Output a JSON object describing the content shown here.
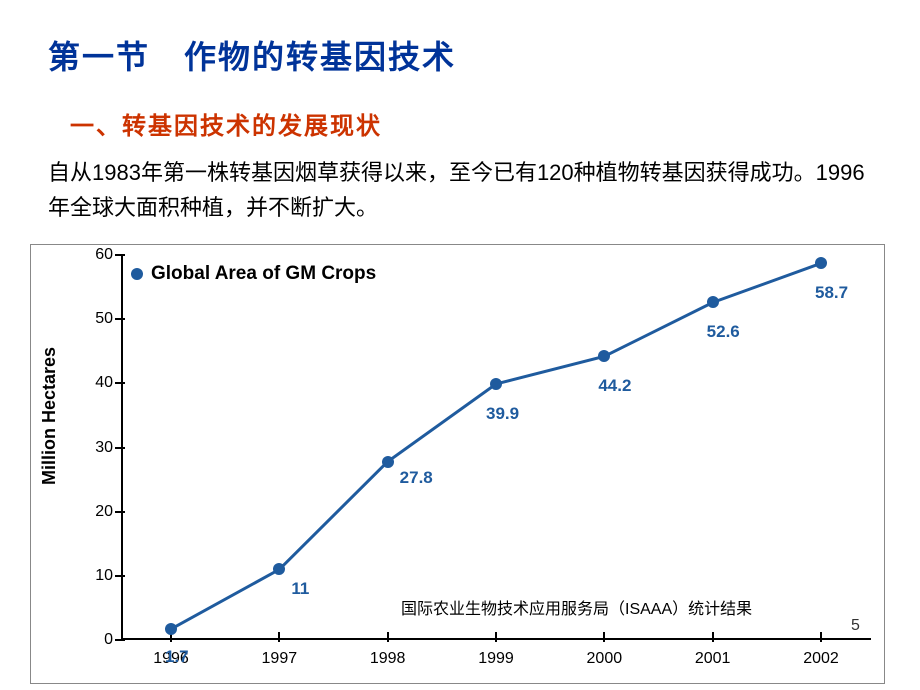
{
  "title": "第一节　作物的转基因技术",
  "subtitle": "一、转基因技术的发展现状",
  "body_text": "自从1983年第一株转基因烟草获得以来，至今已有120种植物转基因获得成功。1996年全球大面积种植，并不断扩大。",
  "chart": {
    "type": "line",
    "legend_label": "Global Area of GM Crops",
    "y_axis_label": "Million Hectares",
    "line_color": "#1f5b9e",
    "marker_color": "#1f5b9e",
    "line_width": 3,
    "marker_size": 12,
    "background_color": "#ffffff",
    "axis_color": "#000000",
    "text_color": "#000000",
    "data_label_color": "#1f5b9e",
    "data_label_fontsize": 17,
    "legend_fontsize": 19,
    "tick_fontsize": 16,
    "ylim": [
      0,
      60
    ],
    "ytick_step": 10,
    "yticks": [
      0,
      10,
      20,
      30,
      40,
      50,
      60
    ],
    "xticks": [
      "1996",
      "1997",
      "1998",
      "1999",
      "2000",
      "2001",
      "2002"
    ],
    "values": [
      1.7,
      11,
      27.8,
      39.9,
      44.2,
      52.6,
      58.7
    ],
    "source_note": "国际农业生物技术应用服务局（ISAAA）统计结果",
    "page_number": "5"
  }
}
